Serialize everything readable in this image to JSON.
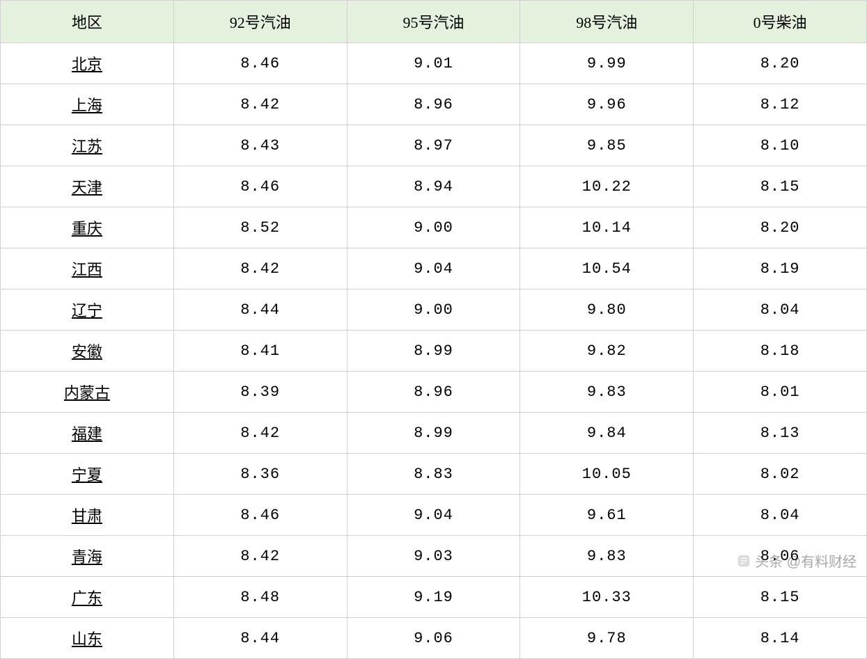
{
  "table": {
    "type": "table",
    "columns": [
      "地区",
      "92号汽油",
      "95号汽油",
      "98号汽油",
      "0号柴油"
    ],
    "column_widths": [
      "20%",
      "20%",
      "20%",
      "20%",
      "20%"
    ],
    "header_bg_color": "#e4f2dd",
    "border_color": "#d0d0d0",
    "text_color": "#000000",
    "header_fontsize": 22,
    "cell_fontsize": 22,
    "region_underline": true,
    "rows": [
      {
        "region": "北京",
        "p92": "8.46",
        "p95": "9.01",
        "p98": "9.99",
        "p0": "8.20"
      },
      {
        "region": "上海",
        "p92": "8.42",
        "p95": "8.96",
        "p98": "9.96",
        "p0": "8.12"
      },
      {
        "region": "江苏",
        "p92": "8.43",
        "p95": "8.97",
        "p98": "9.85",
        "p0": "8.10"
      },
      {
        "region": "天津",
        "p92": "8.46",
        "p95": "8.94",
        "p98": "10.22",
        "p0": "8.15"
      },
      {
        "region": "重庆",
        "p92": "8.52",
        "p95": "9.00",
        "p98": "10.14",
        "p0": "8.20"
      },
      {
        "region": "江西",
        "p92": "8.42",
        "p95": "9.04",
        "p98": "10.54",
        "p0": "8.19"
      },
      {
        "region": "辽宁",
        "p92": "8.44",
        "p95": "9.00",
        "p98": "9.80",
        "p0": "8.04"
      },
      {
        "region": "安徽",
        "p92": "8.41",
        "p95": "8.99",
        "p98": "9.82",
        "p0": "8.18"
      },
      {
        "region": "内蒙古",
        "p92": "8.39",
        "p95": "8.96",
        "p98": "9.83",
        "p0": "8.01"
      },
      {
        "region": "福建",
        "p92": "8.42",
        "p95": "8.99",
        "p98": "9.84",
        "p0": "8.13"
      },
      {
        "region": "宁夏",
        "p92": "8.36",
        "p95": "8.83",
        "p98": "10.05",
        "p0": "8.02"
      },
      {
        "region": "甘肃",
        "p92": "8.46",
        "p95": "9.04",
        "p98": "9.61",
        "p0": "8.04"
      },
      {
        "region": "青海",
        "p92": "8.42",
        "p95": "9.03",
        "p98": "9.83",
        "p0": "8.06"
      },
      {
        "region": "广东",
        "p92": "8.48",
        "p95": "9.19",
        "p98": "10.33",
        "p0": "8.15"
      },
      {
        "region": "山东",
        "p92": "8.44",
        "p95": "9.06",
        "p98": "9.78",
        "p0": "8.14"
      }
    ]
  },
  "watermark": {
    "text": "头条 @有料财经",
    "color": "rgba(80,80,80,0.5)",
    "fontsize": 20
  }
}
